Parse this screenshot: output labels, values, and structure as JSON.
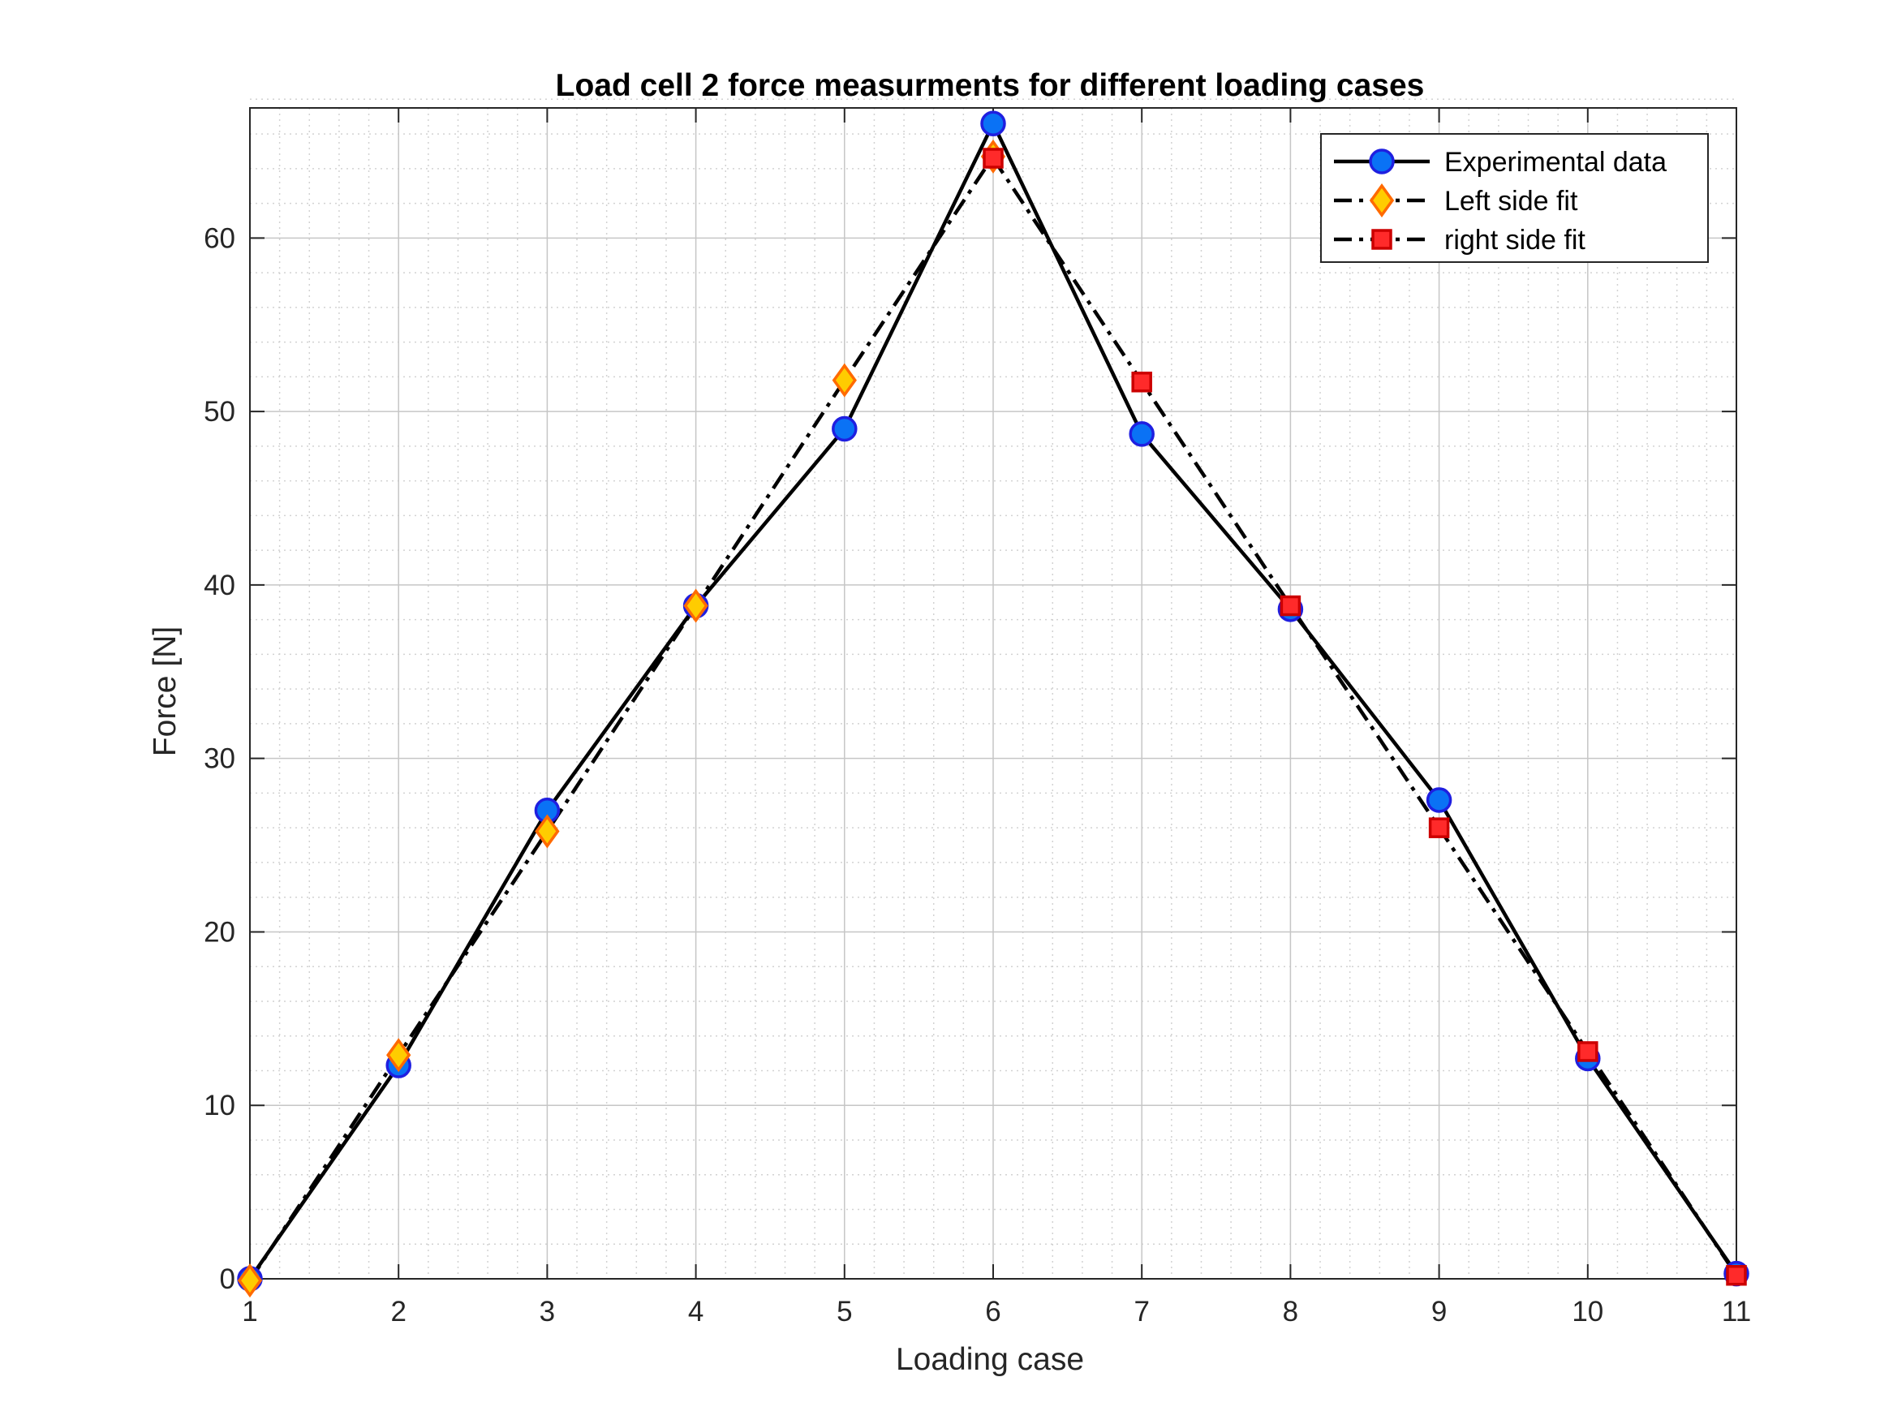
{
  "chart_data": {
    "type": "line",
    "title": "Load cell 2 force measurments for different loading cases",
    "xlabel": "Loading case",
    "ylabel": "Force [N]",
    "xlim": [
      1,
      11
    ],
    "ylim": [
      0,
      67.5
    ],
    "x_ticks": [
      1,
      2,
      3,
      4,
      5,
      6,
      7,
      8,
      9,
      10,
      11
    ],
    "y_ticks": [
      0,
      10,
      20,
      30,
      40,
      50,
      60
    ],
    "grid": true,
    "minor_grid": true,
    "legend_position": "top-right",
    "series": [
      {
        "name": "Experimental data",
        "line_style": "solid",
        "marker": "circle",
        "marker_fill": "#0a72f5",
        "marker_edge": "#1f1fe0",
        "x": [
          1,
          2,
          3,
          4,
          5,
          6,
          7,
          8,
          9,
          10,
          11
        ],
        "y": [
          0,
          12.3,
          27.0,
          38.8,
          49.0,
          66.6,
          48.7,
          38.6,
          27.6,
          12.7,
          0.3
        ]
      },
      {
        "name": "Left side fit",
        "line_style": "dashdot",
        "marker": "diamond",
        "marker_fill": "#ffcc00",
        "marker_edge": "#ff6a00",
        "x": [
          1,
          2,
          3,
          4,
          5,
          6
        ],
        "y": [
          -0.1,
          12.9,
          25.8,
          38.8,
          51.8,
          64.7
        ]
      },
      {
        "name": "right side fit",
        "line_style": "dashdot",
        "marker": "square",
        "marker_fill": "#ff2a2a",
        "marker_edge": "#cc0000",
        "x": [
          6,
          7,
          8,
          9,
          10,
          11
        ],
        "y": [
          64.6,
          51.7,
          38.8,
          26.0,
          13.1,
          0.2
        ]
      }
    ]
  }
}
